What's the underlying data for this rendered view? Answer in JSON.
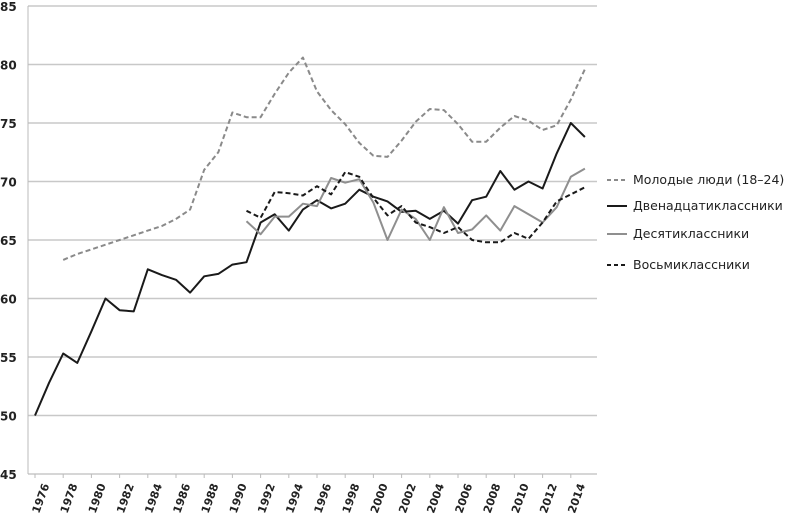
{
  "chart_data": {
    "type": "line",
    "title": "",
    "xlabel": "",
    "ylabel": "",
    "ylim": [
      45,
      85
    ],
    "xlim": [
      1976,
      2015
    ],
    "yticks": [
      "45",
      "50",
      "55",
      "60",
      "65",
      "70",
      "75",
      "80",
      "85"
    ],
    "xticks": [
      "1976",
      "1978",
      "1980",
      "1982",
      "1984",
      "1986",
      "1988",
      "1990",
      "1992",
      "1994",
      "1996",
      "1998",
      "2000",
      "2002",
      "2004",
      "2006",
      "2008",
      "2010",
      "2012",
      "2014"
    ],
    "grid": "horizontal",
    "legend_position": "right",
    "series": [
      {
        "name": "Молодые люди (18–24)",
        "color": "#8a8a8a",
        "dashed": true,
        "x": [
          1978,
          1979,
          1980,
          1981,
          1982,
          1983,
          1984,
          1985,
          1986,
          1987,
          1988,
          1989,
          1990,
          1991,
          1992,
          1993,
          1994,
          1995,
          1996,
          1997,
          1998,
          1999,
          2000,
          2001,
          2002,
          2003,
          2004,
          2005,
          2006,
          2007,
          2008,
          2009,
          2010,
          2011,
          2012,
          2013,
          2014,
          2015
        ],
        "values": [
          63.3,
          63.8,
          64.2,
          64.6,
          65.0,
          65.4,
          65.8,
          66.2,
          66.8,
          67.6,
          71.0,
          72.5,
          75.9,
          75.5,
          75.5,
          77.5,
          79.3,
          80.6,
          77.7,
          76.1,
          74.9,
          73.3,
          72.2,
          72.1,
          73.5,
          75.1,
          76.2,
          76.1,
          74.9,
          73.4,
          73.4,
          74.6,
          75.6,
          75.2,
          74.4,
          74.8,
          77.0,
          79.6
        ]
      },
      {
        "name": "Двенадцатиклассники",
        "color": "#1a1a1a",
        "dashed": false,
        "x": [
          1976,
          1977,
          1978,
          1979,
          1980,
          1981,
          1982,
          1983,
          1984,
          1985,
          1986,
          1987,
          1988,
          1989,
          1990,
          1991,
          1992,
          1993,
          1994,
          1995,
          1996,
          1997,
          1998,
          1999,
          2000,
          2001,
          2002,
          2003,
          2004,
          2005,
          2006,
          2007,
          2008,
          2009,
          2010,
          2011,
          2012,
          2013,
          2014,
          2015
        ],
        "values": [
          50.0,
          52.8,
          55.3,
          54.5,
          57.2,
          60.0,
          59.0,
          58.9,
          62.5,
          62.0,
          61.6,
          60.5,
          61.9,
          62.1,
          62.9,
          63.1,
          66.5,
          67.2,
          65.8,
          67.6,
          68.4,
          67.7,
          68.1,
          69.3,
          68.7,
          68.3,
          67.4,
          67.5,
          66.8,
          67.5,
          66.4,
          68.4,
          68.7,
          70.9,
          69.3,
          70.0,
          69.4,
          72.4,
          75.0,
          73.8
        ]
      },
      {
        "name": "Десятиклассники",
        "color": "#8f8f8f",
        "dashed": false,
        "x": [
          1991,
          1992,
          1993,
          1994,
          1995,
          1996,
          1997,
          1998,
          1999,
          2000,
          2001,
          2002,
          2003,
          2004,
          2005,
          2006,
          2007,
          2008,
          2009,
          2010,
          2011,
          2012,
          2013,
          2014,
          2015
        ],
        "values": [
          66.6,
          65.5,
          67.0,
          67.0,
          68.1,
          67.9,
          70.3,
          69.9,
          70.2,
          68.2,
          65.0,
          67.6,
          66.8,
          65.0,
          67.8,
          65.6,
          65.9,
          67.1,
          65.8,
          67.9,
          67.2,
          66.5,
          67.8,
          70.4,
          71.1
        ]
      },
      {
        "name": "Восьмиклассники",
        "color": "#1a1a1a",
        "dashed": true,
        "x": [
          1991,
          1992,
          1993,
          1994,
          1995,
          1996,
          1997,
          1998,
          1999,
          2000,
          2001,
          2002,
          2003,
          2004,
          2005,
          2006,
          2007,
          2008,
          2009,
          2010,
          2011,
          2012,
          2013,
          2014,
          2015
        ],
        "values": [
          67.5,
          66.9,
          69.1,
          69.0,
          68.8,
          69.6,
          68.9,
          70.8,
          70.4,
          68.6,
          67.1,
          67.9,
          66.5,
          66.1,
          65.6,
          66.1,
          65.0,
          64.8,
          64.8,
          65.6,
          65.1,
          66.5,
          68.3,
          68.9,
          69.5
        ]
      }
    ]
  }
}
